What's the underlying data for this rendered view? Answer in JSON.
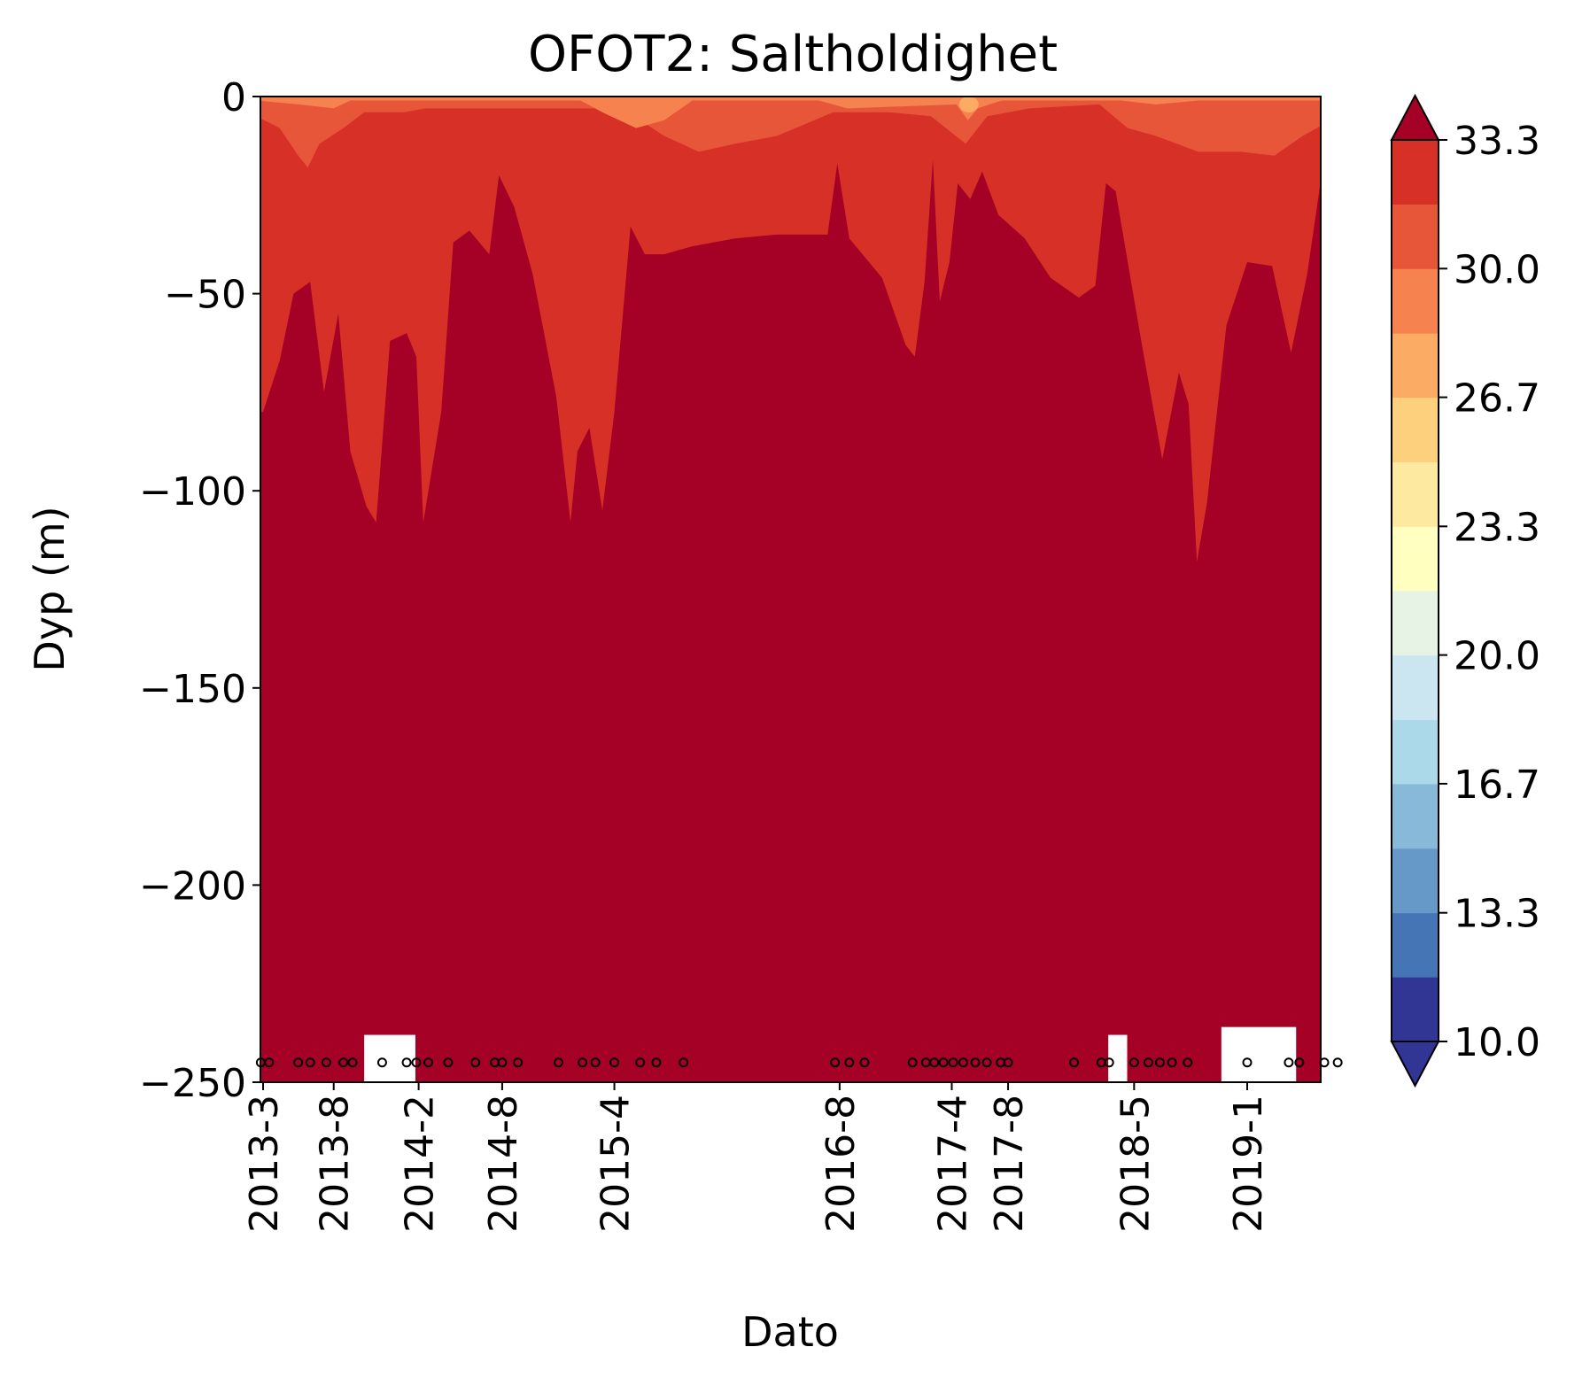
{
  "chart_data": {
    "type": "heatmap",
    "subtype": "filled-contour",
    "title": "OFOT2: Saltholdighet",
    "xlabel": "Dato",
    "ylabel": "Dyp (m)",
    "ylim": [
      -250,
      0
    ],
    "yticks": [
      0,
      -50,
      -100,
      -150,
      -200,
      -250
    ],
    "ytick_labels": [
      "0",
      "−50",
      "−100",
      "−150",
      "−200",
      "−250"
    ],
    "xlim": [
      "2013-03",
      "2019-08"
    ],
    "xticks": [
      {
        "label": "2013-3",
        "date": "2013-03-15"
      },
      {
        "label": "2013-8",
        "date": "2013-08-15"
      },
      {
        "label": "2014-2",
        "date": "2014-02-15"
      },
      {
        "label": "2014-8",
        "date": "2014-08-15"
      },
      {
        "label": "2015-4",
        "date": "2015-04-15"
      },
      {
        "label": "2016-8",
        "date": "2016-08-15"
      },
      {
        "label": "2017-4",
        "date": "2017-04-15"
      },
      {
        "label": "2017-8",
        "date": "2017-08-15"
      },
      {
        "label": "2018-5",
        "date": "2018-05-15"
      },
      {
        "label": "2019-1",
        "date": "2019-01-15"
      }
    ],
    "colorbar": {
      "levels": [
        10.0,
        11.67,
        13.33,
        15.0,
        16.67,
        18.33,
        20.0,
        21.67,
        23.33,
        25.0,
        26.67,
        28.33,
        30.0,
        31.67,
        33.33
      ],
      "tick_values": [
        10.0,
        13.33,
        16.67,
        20.0,
        23.33,
        26.67,
        30.0,
        33.33
      ],
      "tick_labels": [
        "10.0",
        "13.3",
        "16.7",
        "20.0",
        "23.3",
        "26.7",
        "30.0",
        "33.3"
      ],
      "extend": "both",
      "colors": [
        "#313695",
        "#4575b4",
        "#6699c8",
        "#88b9d9",
        "#abd9e9",
        "#cbe6f0",
        "#e7f3e4",
        "#ffffbf",
        "#fee9a0",
        "#fdd07d",
        "#fcab65",
        "#f6834f",
        "#e8563a",
        "#d73027",
        "#a50026"
      ],
      "under_color": "#313695",
      "over_color": "#a50026"
    },
    "salinity_bands": [
      {
        "level": "28.33-30.0",
        "color": "#f6834f",
        "depth_ranges": [
          [
            0,
            -6
          ],
          [
            0,
            -12
          ],
          [
            0,
            -10
          ]
        ]
      },
      {
        "level": "30.0-31.67",
        "color": "#e8563a",
        "typical_depth": "0 to -15 m"
      },
      {
        "level": "31.67-33.33",
        "color": "#d73027",
        "typical_depth": "-15 to -100 m"
      },
      {
        "level": ">33.33",
        "color": "#a50026",
        "typical_depth": "below -40 to -110 m"
      }
    ],
    "sample_markers": {
      "depth": -245,
      "dates": [
        "2013-03-10",
        "2013-03-28",
        "2013-05-30",
        "2013-06-25",
        "2013-07-30",
        "2013-09-05",
        "2013-09-25",
        "2013-11-28",
        "2014-01-20",
        "2014-02-10",
        "2014-03-08",
        "2014-04-20",
        "2014-06-18",
        "2014-07-30",
        "2014-08-15",
        "2014-09-18",
        "2014-12-15",
        "2015-02-05",
        "2015-03-05",
        "2015-04-15",
        "2015-06-10",
        "2015-07-15",
        "2015-09-12",
        "2016-08-05",
        "2016-09-05",
        "2016-10-08",
        "2017-01-20",
        "2017-02-18",
        "2017-03-08",
        "2017-03-28",
        "2017-04-18",
        "2017-05-10",
        "2017-06-05",
        "2017-06-30",
        "2017-07-30",
        "2017-08-15",
        "2018-01-05",
        "2018-03-05",
        "2018-03-22",
        "2018-05-15",
        "2018-06-15",
        "2018-07-10",
        "2018-08-05",
        "2018-09-08",
        "2019-01-15",
        "2019-04-15",
        "2019-05-08",
        "2019-07-01",
        "2019-07-30"
      ]
    },
    "missing_regions": [
      {
        "from": "2013-10-20",
        "to": "2014-02-08",
        "depth_from": -238,
        "depth_to": -250
      },
      {
        "from": "2018-03-20",
        "to": "2018-04-30",
        "depth_from": -238,
        "depth_to": -250
      },
      {
        "from": "2018-11-20",
        "to": "2019-05-01",
        "depth_from": -236,
        "depth_to": -250
      }
    ]
  }
}
